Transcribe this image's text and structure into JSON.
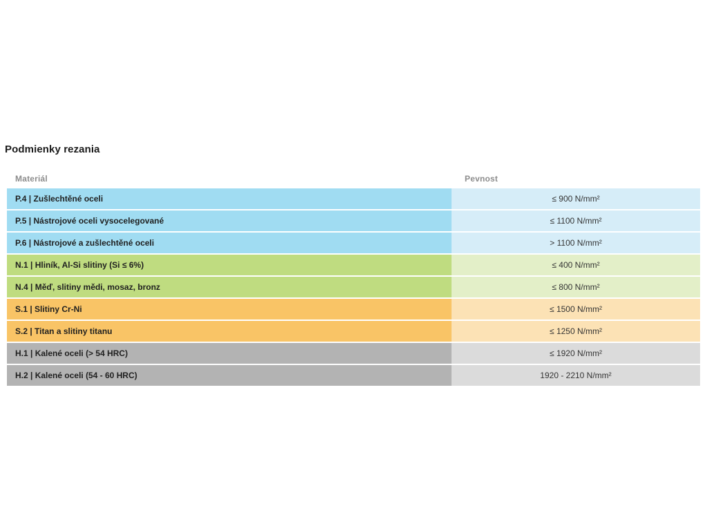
{
  "page": {
    "title": "Podmienky rezania"
  },
  "table": {
    "columns": {
      "material": "Materiál",
      "strength": "Pevnost"
    },
    "rows": [
      {
        "material": "P.4 | Zušlechtěné oceli",
        "strength": "≤ 900 N/mm²",
        "group": "blue"
      },
      {
        "material": "P.5 | Nástrojové oceli vysocelegované",
        "strength": "≤ 1100 N/mm²",
        "group": "blue"
      },
      {
        "material": "P.6 | Nástrojové a zušlechtěné oceli",
        "strength": "> 1100 N/mm²",
        "group": "blue"
      },
      {
        "material": "N.1 | Hliník, Al-Si slitiny (Si ≤ 6%)",
        "strength": "≤ 400 N/mm²",
        "group": "green"
      },
      {
        "material": "N.4 | Měď, slitiny mědi, mosaz, bronz",
        "strength": "≤ 800 N/mm²",
        "group": "green"
      },
      {
        "material": "S.1 | Slitiny Cr-Ni",
        "strength": "≤ 1500 N/mm²",
        "group": "orange"
      },
      {
        "material": "S.2 | Titan a slitiny titanu",
        "strength": "≤ 1250 N/mm²",
        "group": "orange"
      },
      {
        "material": "H.1 | Kalené oceli (> 54 HRC)",
        "strength": "≤ 1920 N/mm²",
        "group": "gray"
      },
      {
        "material": "H.2 | Kalené oceli (54 - 60 HRC)",
        "strength": "1920 - 2210 N/mm²",
        "group": "gray"
      }
    ]
  },
  "colors": {
    "blue": {
      "material": "#A0DCF2",
      "strength": "#D6EDF8"
    },
    "green": {
      "material": "#BFDC80",
      "strength": "#E3EFC8"
    },
    "orange": {
      "material": "#F9C466",
      "strength": "#FCE2B5"
    },
    "gray": {
      "material": "#B3B3B3",
      "strength": "#DBDBDB"
    }
  }
}
